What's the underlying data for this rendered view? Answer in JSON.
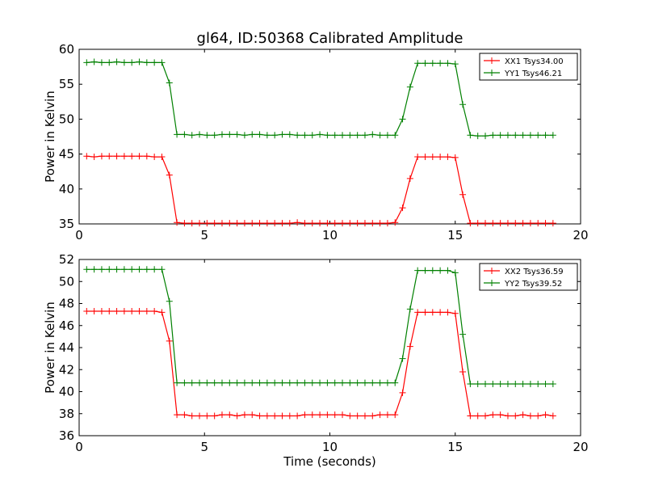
{
  "chart_data": [
    {
      "type": "line",
      "title": "gl64, ID:50368 Calibrated Amplitude",
      "xlabel": "",
      "ylabel": "Power in Kelvin",
      "xlim": [
        0,
        20
      ],
      "ylim": [
        35,
        60
      ],
      "xticks": [
        0,
        5,
        10,
        15,
        20
      ],
      "yticks": [
        35,
        40,
        45,
        50,
        55,
        60
      ],
      "legend_position": "top-right",
      "grid": false,
      "x": [
        0.3,
        0.6,
        0.9,
        1.2,
        1.5,
        1.8,
        2.1,
        2.4,
        2.7,
        3.0,
        3.3,
        3.6,
        3.9,
        4.2,
        4.5,
        4.8,
        5.1,
        5.4,
        5.7,
        6.0,
        6.3,
        6.6,
        6.9,
        7.2,
        7.5,
        7.8,
        8.1,
        8.4,
        8.7,
        9.0,
        9.3,
        9.6,
        9.9,
        10.2,
        10.5,
        10.8,
        11.1,
        11.4,
        11.7,
        12.0,
        12.3,
        12.6,
        12.9,
        13.2,
        13.5,
        13.8,
        14.1,
        14.4,
        14.7,
        15.0,
        15.3,
        15.6,
        15.9,
        16.2,
        16.5,
        16.8,
        17.1,
        17.4,
        17.7,
        18.0,
        18.3,
        18.6,
        18.9
      ],
      "series": [
        {
          "name": "XX1 Tsys34.00",
          "color": "#ff0000",
          "values": [
            44.7,
            44.6,
            44.7,
            44.7,
            44.7,
            44.7,
            44.7,
            44.7,
            44.7,
            44.6,
            44.6,
            42.0,
            35.2,
            35.1,
            35.1,
            35.1,
            35.1,
            35.1,
            35.1,
            35.1,
            35.1,
            35.1,
            35.1,
            35.1,
            35.1,
            35.1,
            35.1,
            35.1,
            35.2,
            35.1,
            35.1,
            35.1,
            35.1,
            35.1,
            35.1,
            35.1,
            35.1,
            35.1,
            35.1,
            35.1,
            35.1,
            35.2,
            37.3,
            41.5,
            44.6,
            44.6,
            44.6,
            44.6,
            44.6,
            44.5,
            39.2,
            35.1,
            35.1,
            35.1,
            35.1,
            35.1,
            35.1,
            35.1,
            35.1,
            35.1,
            35.1,
            35.1,
            35.1
          ]
        },
        {
          "name": "YY1 Tsys46.21",
          "color": "#008000",
          "values": [
            58.1,
            58.2,
            58.1,
            58.1,
            58.2,
            58.1,
            58.1,
            58.2,
            58.1,
            58.1,
            58.1,
            55.2,
            47.8,
            47.8,
            47.7,
            47.8,
            47.7,
            47.7,
            47.8,
            47.8,
            47.8,
            47.7,
            47.8,
            47.8,
            47.7,
            47.7,
            47.8,
            47.8,
            47.7,
            47.7,
            47.7,
            47.8,
            47.7,
            47.7,
            47.7,
            47.7,
            47.7,
            47.7,
            47.8,
            47.7,
            47.7,
            47.7,
            50.0,
            54.6,
            58.0,
            58.0,
            58.0,
            58.0,
            58.0,
            57.9,
            52.1,
            47.7,
            47.6,
            47.6,
            47.7,
            47.7,
            47.7,
            47.7,
            47.7,
            47.7,
            47.7,
            47.7,
            47.7
          ]
        }
      ]
    },
    {
      "type": "line",
      "title": "",
      "xlabel": "Time (seconds)",
      "ylabel": "Power in Kelvin",
      "xlim": [
        0,
        20
      ],
      "ylim": [
        36,
        52
      ],
      "xticks": [
        0,
        5,
        10,
        15,
        20
      ],
      "yticks": [
        36,
        38,
        40,
        42,
        44,
        46,
        48,
        50,
        52
      ],
      "legend_position": "top-right",
      "grid": false,
      "x": [
        0.3,
        0.6,
        0.9,
        1.2,
        1.5,
        1.8,
        2.1,
        2.4,
        2.7,
        3.0,
        3.3,
        3.6,
        3.9,
        4.2,
        4.5,
        4.8,
        5.1,
        5.4,
        5.7,
        6.0,
        6.3,
        6.6,
        6.9,
        7.2,
        7.5,
        7.8,
        8.1,
        8.4,
        8.7,
        9.0,
        9.3,
        9.6,
        9.9,
        10.2,
        10.5,
        10.8,
        11.1,
        11.4,
        11.7,
        12.0,
        12.3,
        12.6,
        12.9,
        13.2,
        13.5,
        13.8,
        14.1,
        14.4,
        14.7,
        15.0,
        15.3,
        15.6,
        15.9,
        16.2,
        16.5,
        16.8,
        17.1,
        17.4,
        17.7,
        18.0,
        18.3,
        18.6,
        18.9
      ],
      "series": [
        {
          "name": "XX2 Tsys36.59",
          "color": "#ff0000",
          "values": [
            47.3,
            47.3,
            47.3,
            47.3,
            47.3,
            47.3,
            47.3,
            47.3,
            47.3,
            47.3,
            47.2,
            44.6,
            37.9,
            37.9,
            37.8,
            37.8,
            37.8,
            37.8,
            37.9,
            37.9,
            37.8,
            37.9,
            37.9,
            37.8,
            37.8,
            37.8,
            37.8,
            37.8,
            37.8,
            37.9,
            37.9,
            37.9,
            37.9,
            37.9,
            37.9,
            37.8,
            37.8,
            37.8,
            37.8,
            37.9,
            37.9,
            37.9,
            39.9,
            44.1,
            47.2,
            47.2,
            47.2,
            47.2,
            47.2,
            47.1,
            41.8,
            37.8,
            37.8,
            37.8,
            37.9,
            37.9,
            37.8,
            37.8,
            37.9,
            37.8,
            37.8,
            37.9,
            37.8
          ]
        },
        {
          "name": "YY2 Tsys39.52",
          "color": "#008000",
          "values": [
            51.1,
            51.1,
            51.1,
            51.1,
            51.1,
            51.1,
            51.1,
            51.1,
            51.1,
            51.1,
            51.1,
            48.2,
            40.8,
            40.8,
            40.8,
            40.8,
            40.8,
            40.8,
            40.8,
            40.8,
            40.8,
            40.8,
            40.8,
            40.8,
            40.8,
            40.8,
            40.8,
            40.8,
            40.8,
            40.8,
            40.8,
            40.8,
            40.8,
            40.8,
            40.8,
            40.8,
            40.8,
            40.8,
            40.8,
            40.8,
            40.8,
            40.8,
            43.0,
            47.5,
            51.0,
            51.0,
            51.0,
            51.0,
            51.0,
            50.8,
            45.2,
            40.7,
            40.7,
            40.7,
            40.7,
            40.7,
            40.7,
            40.7,
            40.7,
            40.7,
            40.7,
            40.7,
            40.7
          ]
        }
      ]
    }
  ]
}
